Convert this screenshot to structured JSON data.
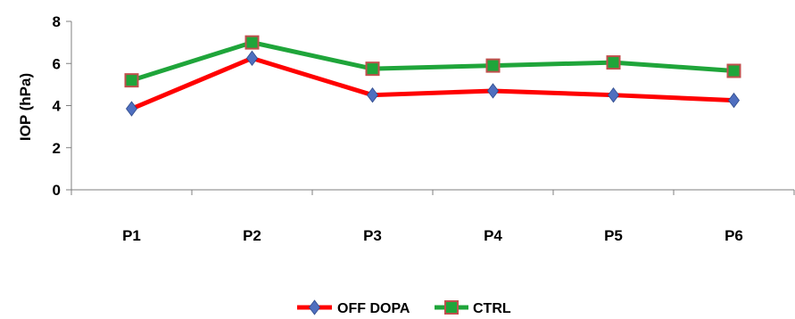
{
  "chart_data": {
    "type": "line",
    "categories": [
      "P1",
      "P2",
      "P3",
      "P4",
      "P5",
      "P6"
    ],
    "ylabel": "IOP (hPa)",
    "xlabel": "",
    "title": "",
    "ylim": [
      0,
      8
    ],
    "yticks": [
      "0",
      "2",
      "4",
      "6",
      "8"
    ],
    "grid": false,
    "legend_position": "bottom",
    "series": [
      {
        "name": "OFF DOPA",
        "values": [
          3.85,
          6.25,
          4.5,
          4.7,
          4.5,
          4.25
        ],
        "color": "#ff0000",
        "marker": "diamond",
        "marker_color": "#4f6fbf"
      },
      {
        "name": "CTRL",
        "values": [
          5.2,
          7.0,
          5.75,
          5.9,
          6.05,
          5.65
        ],
        "color": "#1fa53a",
        "marker": "square",
        "marker_color": "#c0504d"
      }
    ]
  }
}
